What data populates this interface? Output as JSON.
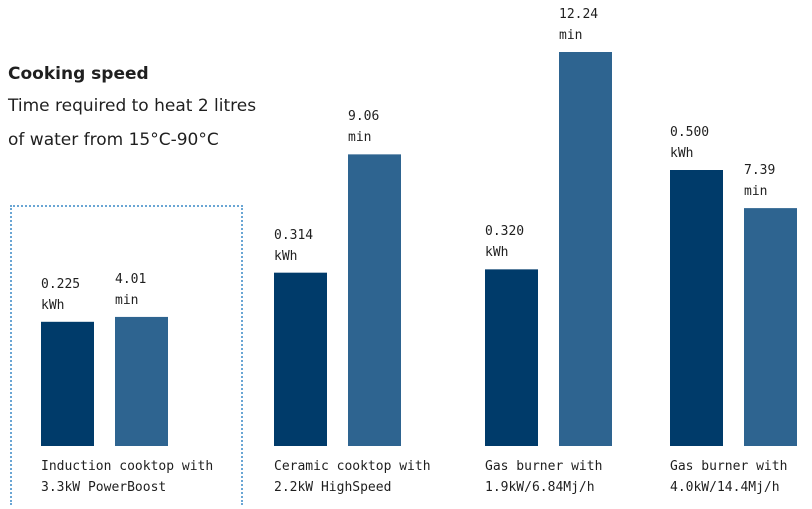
{
  "chart_data": {
    "type": "bar",
    "title": "Cooking speed",
    "subtitle_lines": [
      "Time required to heat 2 litres",
      "of water from 15°C-90°C"
    ],
    "categories": [
      [
        "Induction cooktop with",
        "3.3kW PowerBoost"
      ],
      [
        "Ceramic cooktop with",
        "2.2kW HighSpeed"
      ],
      [
        "Gas burner with",
        "1.9kW/6.84Mj/h"
      ],
      [
        "Gas burner with",
        "4.0kW/14.4Mj/h"
      ]
    ],
    "highlighted_category_index": 0,
    "series": [
      {
        "unit": "kWh",
        "values": [
          0.225,
          0.314,
          0.32,
          0.5
        ],
        "labels": [
          "0.225",
          "0.314",
          "0.320",
          "0.500"
        ]
      },
      {
        "unit": "min",
        "values": [
          4.01,
          9.06,
          12.24,
          7.39
        ],
        "labels": [
          "4.01",
          "9.06",
          "12.24",
          "7.39"
        ]
      }
    ],
    "colors": {
      "energy": "#003b6a",
      "time": "#2e6490",
      "highlight_border": "#6aa6d4"
    },
    "grid": false,
    "legend": "none"
  }
}
